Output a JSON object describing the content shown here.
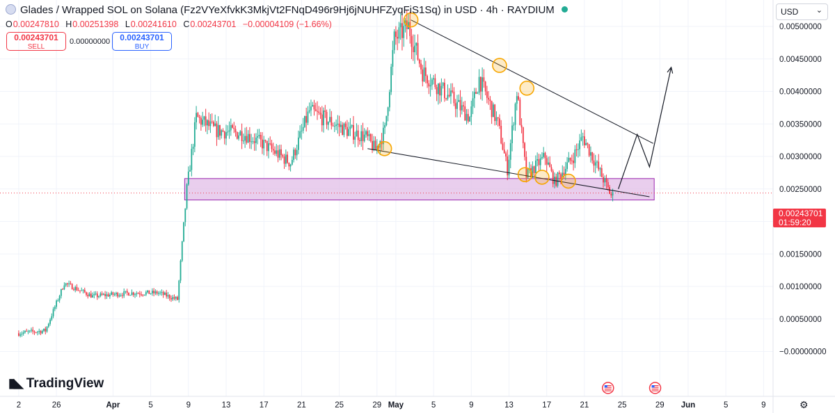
{
  "header": {
    "title": "Glades / Wrapped SOL on Solana (Fz2VYeXfvkK3MkjVt2FNqD496r9Hj6jNUHFZyqFiS1Sq) in USD · 4h · RAYDIUM",
    "status_color": "#22ab94",
    "ohlc": {
      "o_label": "O",
      "o": "0.00247810",
      "h_label": "H",
      "h": "0.00251398",
      "l_label": "L",
      "l": "0.00241610",
      "c_label": "C",
      "c": "0.00243701",
      "change": "−0.00004109 (−1.66%)"
    }
  },
  "trade": {
    "sell_price": "0.00243701",
    "sell_label": "SELL",
    "spread": "0.00000000",
    "buy_price": "0.00243701",
    "buy_label": "BUY"
  },
  "currency": {
    "selected": "USD"
  },
  "price_tag": {
    "price": "0.00243701",
    "countdown": "01:59:20"
  },
  "branding": {
    "name": "TradingView"
  },
  "icons": {
    "settings": "gear-icon",
    "events": "us-flag-icon",
    "dropdown": "chevron-down-icon"
  },
  "colors": {
    "up": "#22ab94",
    "down": "#f23645",
    "zone_fill": "#e1bee7",
    "zone_stroke": "#9c27b0",
    "marker": "#f7a600",
    "line": "#131722"
  },
  "chart_data": {
    "type": "candlestick",
    "y_tick_labels": [
      "0.00500000",
      "0.00450000",
      "0.00400000",
      "0.00350000",
      "0.00300000",
      "0.00250000",
      "0.00200000",
      "0.00150000",
      "0.00100000",
      "0.00050000",
      "−0.00000000"
    ],
    "y_ticks": [
      0.005,
      0.0045,
      0.004,
      0.0035,
      0.003,
      0.0025,
      0.002,
      0.0015,
      0.001,
      0.0005,
      0
    ],
    "x_tick_labels": [
      "2",
      "26",
      "Apr",
      "5",
      "9",
      "13",
      "17",
      "21",
      "25",
      "29",
      "May",
      "5",
      "9",
      "13",
      "17",
      "21",
      "25",
      "29",
      "Jun",
      "5",
      "9"
    ],
    "x_ticks": [
      -2,
      2,
      8,
      12,
      16,
      20,
      24,
      28,
      32,
      36,
      38,
      42,
      46,
      50,
      54,
      58,
      62,
      66,
      69,
      73,
      77
    ],
    "x_unit": "days since Mar 24",
    "ylim": [
      -5e-05,
      0.0055
    ],
    "grid": true,
    "last_price": 0.00243701,
    "key_points": [
      {
        "x": -2,
        "y": 0.00028
      },
      {
        "x": 1,
        "y": 0.00032
      },
      {
        "x": 3,
        "y": 0.00105
      },
      {
        "x": 6,
        "y": 0.00085
      },
      {
        "x": 10,
        "y": 0.0009
      },
      {
        "x": 13,
        "y": 0.0009
      },
      {
        "x": 15,
        "y": 0.0008
      },
      {
        "x": 16,
        "y": 0.0025
      },
      {
        "x": 17,
        "y": 0.0036
      },
      {
        "x": 19,
        "y": 0.0034
      },
      {
        "x": 22,
        "y": 0.00335
      },
      {
        "x": 24,
        "y": 0.0032
      },
      {
        "x": 27,
        "y": 0.0029
      },
      {
        "x": 29,
        "y": 0.0037
      },
      {
        "x": 33,
        "y": 0.0034
      },
      {
        "x": 35,
        "y": 0.0033
      },
      {
        "x": 36,
        "y": 0.0031
      },
      {
        "x": 37,
        "y": 0.0034
      },
      {
        "x": 38,
        "y": 0.0048
      },
      {
        "x": 39.5,
        "y": 0.005
      },
      {
        "x": 41,
        "y": 0.0043
      },
      {
        "x": 44,
        "y": 0.0039
      },
      {
        "x": 46,
        "y": 0.0036
      },
      {
        "x": 47,
        "y": 0.0042
      },
      {
        "x": 49,
        "y": 0.0035
      },
      {
        "x": 50,
        "y": 0.0028
      },
      {
        "x": 51,
        "y": 0.004
      },
      {
        "x": 52,
        "y": 0.0027
      },
      {
        "x": 54,
        "y": 0.003
      },
      {
        "x": 55,
        "y": 0.0026
      },
      {
        "x": 57,
        "y": 0.003
      },
      {
        "x": 58,
        "y": 0.0033
      },
      {
        "x": 60,
        "y": 0.0027
      },
      {
        "x": 61,
        "y": 0.0024
      }
    ],
    "zone": {
      "x1": 15.6,
      "x2": 65.4,
      "y1": 0.00233,
      "y2": 0.00266
    },
    "trend_lines": [
      {
        "x1": 39.6,
        "y1": 0.0051,
        "x2": 65.3,
        "y2": 0.0032
      },
      {
        "x1": 35,
        "y1": 0.00312,
        "x2": 64.9,
        "y2": 0.00238
      }
    ],
    "projection": [
      {
        "x": 61.6,
        "y": 0.0025
      },
      {
        "x": 63.6,
        "y": 0.00334
      },
      {
        "x": 64.9,
        "y": 0.00284
      },
      {
        "x": 67.2,
        "y": 0.00437
      }
    ],
    "markers": [
      {
        "x": 39.6,
        "y": 0.0051
      },
      {
        "x": 36.8,
        "y": 0.00312
      },
      {
        "x": 49,
        "y": 0.0044
      },
      {
        "x": 51.9,
        "y": 0.00405
      },
      {
        "x": 51.7,
        "y": 0.00272
      },
      {
        "x": 53.5,
        "y": 0.00268
      },
      {
        "x": 56.3,
        "y": 0.00262
      }
    ],
    "event_days": [
      60.5,
      65.5
    ]
  }
}
